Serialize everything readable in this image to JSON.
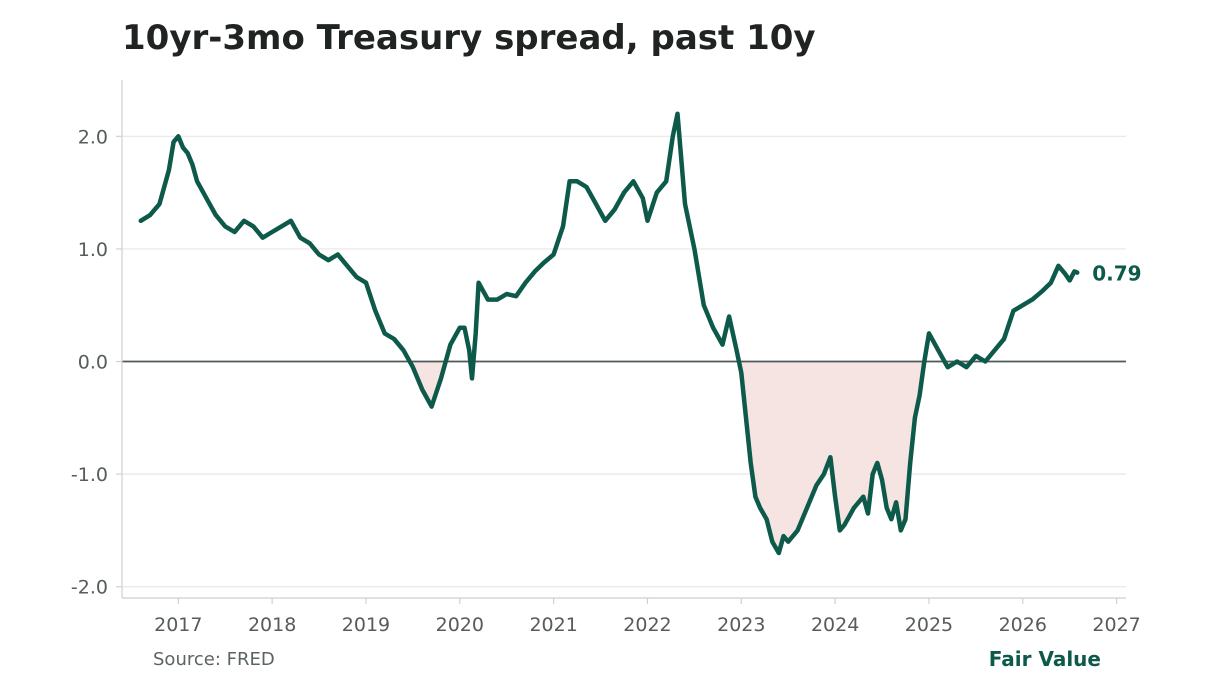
{
  "chart_data": {
    "type": "area",
    "title": "10yr-3mo Treasury spread, past 10y",
    "xlabel": "",
    "ylabel": "",
    "xlim": [
      2016.4,
      2027.1
    ],
    "ylim": [
      -2.1,
      2.5
    ],
    "x_ticks": [
      "2017",
      "2018",
      "2019",
      "2020",
      "2021",
      "2022",
      "2023",
      "2024",
      "2025",
      "2026",
      "2027"
    ],
    "y_ticks": [
      "2.0",
      "1.0",
      "0.0",
      "-1.0",
      "-2.0"
    ],
    "grid": "horizontal",
    "baseline": 0.0,
    "last_value_label": "0.79",
    "series": [
      {
        "x": [
          2016.6,
          2016.7,
          2016.8,
          2016.9,
          2016.95,
          2017.0,
          2017.05,
          2017.1,
          2017.15,
          2017.2,
          2017.3,
          2017.4,
          2017.5,
          2017.6,
          2017.7,
          2017.8,
          2017.9,
          2018.0,
          2018.1,
          2018.2,
          2018.3,
          2018.4,
          2018.5,
          2018.6,
          2018.7,
          2018.8,
          2018.9,
          2019.0,
          2019.1,
          2019.2,
          2019.3,
          2019.4,
          2019.5,
          2019.6,
          2019.7,
          2019.8,
          2019.9,
          2020.0,
          2020.05,
          2020.1,
          2020.13,
          2020.17,
          2020.2,
          2020.3,
          2020.4,
          2020.5,
          2020.6,
          2020.7,
          2020.8,
          2020.9,
          2021.0,
          2021.1,
          2021.17,
          2021.25,
          2021.35,
          2021.45,
          2021.55,
          2021.65,
          2021.75,
          2021.85,
          2021.95,
          2022.0,
          2022.1,
          2022.2,
          2022.27,
          2022.32,
          2022.4,
          2022.5,
          2022.6,
          2022.7,
          2022.8,
          2022.87,
          2022.95,
          2023.0,
          2023.05,
          2023.1,
          2023.15,
          2023.2,
          2023.27,
          2023.33,
          2023.4,
          2023.45,
          2023.5,
          2023.6,
          2023.7,
          2023.8,
          2023.88,
          2023.95,
          2024.0,
          2024.05,
          2024.1,
          2024.2,
          2024.3,
          2024.35,
          2024.4,
          2024.45,
          2024.5,
          2024.55,
          2024.6,
          2024.65,
          2024.7,
          2024.75,
          2024.8,
          2024.85,
          2024.9,
          2024.95,
          2025.0,
          2025.1,
          2025.2,
          2025.3,
          2025.4,
          2025.5,
          2025.6,
          2025.7,
          2025.8,
          2025.9,
          2026.0,
          2026.1,
          2026.2,
          2026.3,
          2026.38,
          2026.45,
          2026.5,
          2026.55,
          2026.58
        ],
        "values": [
          1.25,
          1.3,
          1.4,
          1.7,
          1.95,
          2.0,
          1.9,
          1.85,
          1.75,
          1.6,
          1.45,
          1.3,
          1.2,
          1.15,
          1.25,
          1.2,
          1.1,
          1.15,
          1.2,
          1.25,
          1.1,
          1.05,
          0.95,
          0.9,
          0.95,
          0.85,
          0.75,
          0.7,
          0.45,
          0.25,
          0.2,
          0.1,
          -0.05,
          -0.25,
          -0.4,
          -0.15,
          0.15,
          0.3,
          0.3,
          0.1,
          -0.15,
          0.25,
          0.7,
          0.55,
          0.55,
          0.6,
          0.58,
          0.7,
          0.8,
          0.88,
          0.95,
          1.2,
          1.6,
          1.6,
          1.55,
          1.4,
          1.25,
          1.35,
          1.5,
          1.6,
          1.45,
          1.25,
          1.5,
          1.6,
          2.0,
          2.2,
          1.4,
          1.0,
          0.5,
          0.3,
          0.15,
          0.4,
          0.1,
          -0.1,
          -0.5,
          -0.9,
          -1.2,
          -1.3,
          -1.4,
          -1.6,
          -1.7,
          -1.55,
          -1.6,
          -1.5,
          -1.3,
          -1.1,
          -1.0,
          -0.85,
          -1.2,
          -1.5,
          -1.45,
          -1.3,
          -1.2,
          -1.35,
          -1.0,
          -0.9,
          -1.05,
          -1.3,
          -1.4,
          -1.25,
          -1.5,
          -1.4,
          -0.9,
          -0.5,
          -0.3,
          0.0,
          0.25,
          0.1,
          -0.05,
          0.0,
          -0.05,
          0.05,
          0.0,
          0.1,
          0.2,
          0.45,
          0.5,
          0.55,
          0.62,
          0.7,
          0.85,
          0.78,
          0.72,
          0.8,
          0.79
        ]
      }
    ],
    "colors": {
      "line": "#0e5a4a",
      "fill_below_zero": "#f5e4e1",
      "grid": "#e6e8e7",
      "zero_line": "#4e5a57",
      "axis": "#cdd1d0"
    }
  },
  "footer": {
    "source": "Source: FRED",
    "brand": "Fair Value"
  }
}
